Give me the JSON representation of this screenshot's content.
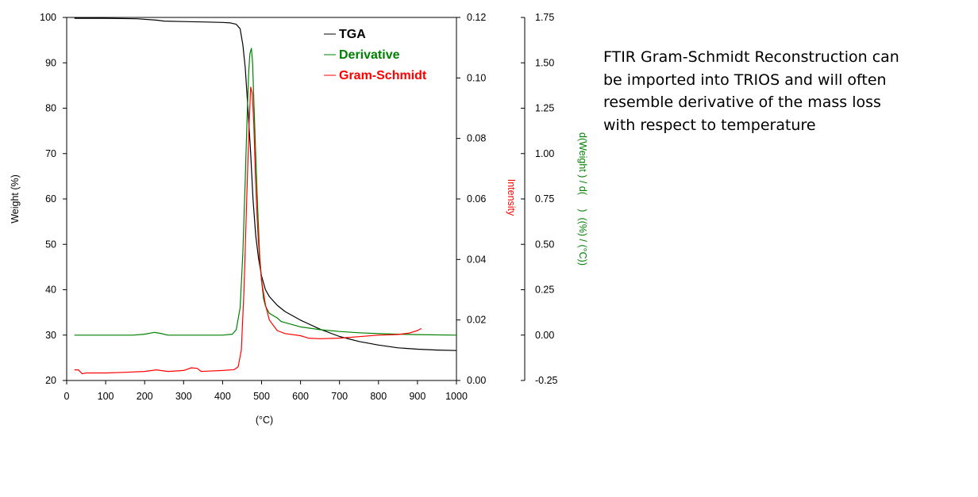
{
  "chart_data": {
    "type": "line",
    "xlabel": "(°C)",
    "xlim": [
      0,
      1000
    ],
    "x_ticks": [
      "0",
      "100",
      "200",
      "300",
      "400",
      "500",
      "600",
      "700",
      "800",
      "900",
      "1000"
    ],
    "axes": {
      "left": {
        "label": "Weight   (%)",
        "range": [
          20,
          100
        ],
        "ticks": [
          "20",
          "30",
          "40",
          "50",
          "60",
          "70",
          "80",
          "90",
          "100"
        ],
        "color": "#000000"
      },
      "right_inner": {
        "label": "Intensity",
        "range": [
          0,
          0.12
        ],
        "ticks": [
          "0.00",
          "0.02",
          "0.04",
          "0.06",
          "0.08",
          "0.10",
          "0.12"
        ],
        "color": "#ff0000"
      },
      "right_outer": {
        "label": "d(Weight ) / d(     )  ((%) / (°C))",
        "range": [
          -0.25,
          1.75
        ],
        "ticks": [
          "-0.25",
          "0.00",
          "0.25",
          "0.50",
          "0.75",
          "1.00",
          "1.25",
          "1.50",
          "1.75"
        ],
        "color": "#008000"
      }
    },
    "legend_position": "top-right",
    "series": [
      {
        "name": "TGA",
        "axis": "left",
        "color": "#000000",
        "points": [
          [
            20,
            99.8
          ],
          [
            100,
            99.8
          ],
          [
            180,
            99.7
          ],
          [
            230,
            99.4
          ],
          [
            250,
            99.2
          ],
          [
            300,
            99.1
          ],
          [
            350,
            99.0
          ],
          [
            400,
            98.9
          ],
          [
            420,
            98.8
          ],
          [
            435,
            98.5
          ],
          [
            445,
            97.5
          ],
          [
            452,
            94
          ],
          [
            458,
            89
          ],
          [
            465,
            80
          ],
          [
            472,
            70
          ],
          [
            478,
            60
          ],
          [
            485,
            52
          ],
          [
            492,
            47
          ],
          [
            500,
            43
          ],
          [
            510,
            40
          ],
          [
            520,
            38.5
          ],
          [
            540,
            36.6
          ],
          [
            560,
            35.2
          ],
          [
            600,
            33.3
          ],
          [
            650,
            31.3
          ],
          [
            700,
            29.7
          ],
          [
            750,
            28.6
          ],
          [
            800,
            27.8
          ],
          [
            850,
            27.2
          ],
          [
            900,
            26.9
          ],
          [
            950,
            26.7
          ],
          [
            1000,
            26.6
          ]
        ]
      },
      {
        "name": "Derivative",
        "axis": "right_outer",
        "color": "#008000",
        "points": [
          [
            20,
            0.0
          ],
          [
            100,
            0.0
          ],
          [
            170,
            0.0
          ],
          [
            200,
            0.005
          ],
          [
            225,
            0.015
          ],
          [
            240,
            0.01
          ],
          [
            260,
            0.0
          ],
          [
            300,
            0.0
          ],
          [
            400,
            0.0
          ],
          [
            425,
            0.005
          ],
          [
            435,
            0.03
          ],
          [
            445,
            0.15
          ],
          [
            452,
            0.45
          ],
          [
            458,
            0.85
          ],
          [
            463,
            1.2
          ],
          [
            467,
            1.45
          ],
          [
            470,
            1.55
          ],
          [
            474,
            1.58
          ],
          [
            477,
            1.5
          ],
          [
            480,
            1.3
          ],
          [
            485,
            1.0
          ],
          [
            490,
            0.7
          ],
          [
            495,
            0.45
          ],
          [
            500,
            0.3
          ],
          [
            505,
            0.2
          ],
          [
            510,
            0.16
          ],
          [
            520,
            0.12
          ],
          [
            540,
            0.095
          ],
          [
            550,
            0.075
          ],
          [
            600,
            0.045
          ],
          [
            650,
            0.03
          ],
          [
            700,
            0.02
          ],
          [
            750,
            0.013
          ],
          [
            800,
            0.008
          ],
          [
            850,
            0.005
          ],
          [
            900,
            0.003
          ],
          [
            1000,
            0.0
          ]
        ]
      },
      {
        "name": "Gram-Schmidt",
        "axis": "right_inner",
        "color": "#ff0000",
        "points": [
          [
            20,
            0.0035
          ],
          [
            30,
            0.0035
          ],
          [
            40,
            0.0022
          ],
          [
            50,
            0.0025
          ],
          [
            100,
            0.0025
          ],
          [
            150,
            0.0027
          ],
          [
            200,
            0.003
          ],
          [
            230,
            0.0035
          ],
          [
            260,
            0.003
          ],
          [
            300,
            0.0033
          ],
          [
            320,
            0.0042
          ],
          [
            335,
            0.004
          ],
          [
            345,
            0.003
          ],
          [
            400,
            0.0033
          ],
          [
            430,
            0.0036
          ],
          [
            440,
            0.0045
          ],
          [
            448,
            0.01
          ],
          [
            455,
            0.03
          ],
          [
            462,
            0.06
          ],
          [
            468,
            0.085
          ],
          [
            472,
            0.097
          ],
          [
            476,
            0.095
          ],
          [
            480,
            0.085
          ],
          [
            485,
            0.065
          ],
          [
            490,
            0.05
          ],
          [
            495,
            0.04
          ],
          [
            500,
            0.033
          ],
          [
            510,
            0.025
          ],
          [
            520,
            0.02
          ],
          [
            540,
            0.0165
          ],
          [
            560,
            0.0155
          ],
          [
            600,
            0.0148
          ],
          [
            620,
            0.014
          ],
          [
            650,
            0.0138
          ],
          [
            700,
            0.014
          ],
          [
            750,
            0.0145
          ],
          [
            800,
            0.015
          ],
          [
            850,
            0.0152
          ],
          [
            880,
            0.0157
          ],
          [
            900,
            0.0165
          ],
          [
            910,
            0.0172
          ]
        ]
      }
    ]
  },
  "annotation": {
    "text": "FTIR Gram-Schmidt Reconstruction can be imported into TRIOS and will often resemble derivative of the mass loss with respect to temperature"
  }
}
